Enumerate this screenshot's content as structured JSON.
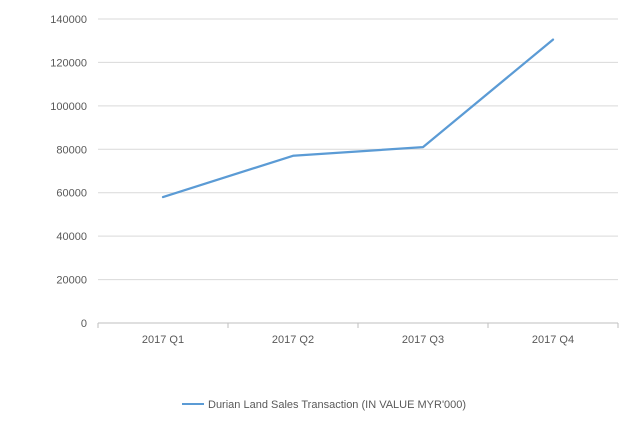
{
  "chart_data": {
    "type": "line",
    "categories": [
      "2017 Q1",
      "2017 Q2",
      "2017 Q3",
      "2017 Q4"
    ],
    "series": [
      {
        "name": "Durian Land Sales Transaction (IN VALUE MYR'000)",
        "values": [
          58000,
          77000,
          81000,
          130500
        ],
        "color": "#5b9bd5"
      }
    ],
    "ylim": [
      0,
      140000
    ],
    "yticks": [
      0,
      20000,
      40000,
      60000,
      80000,
      100000,
      120000,
      140000
    ],
    "grid": true,
    "legend_position": "bottom",
    "title": "",
    "xlabel": "",
    "ylabel": ""
  },
  "colors": {
    "gridline": "#d9d9d9",
    "axis": "#bfbfbf",
    "text": "#595959"
  }
}
